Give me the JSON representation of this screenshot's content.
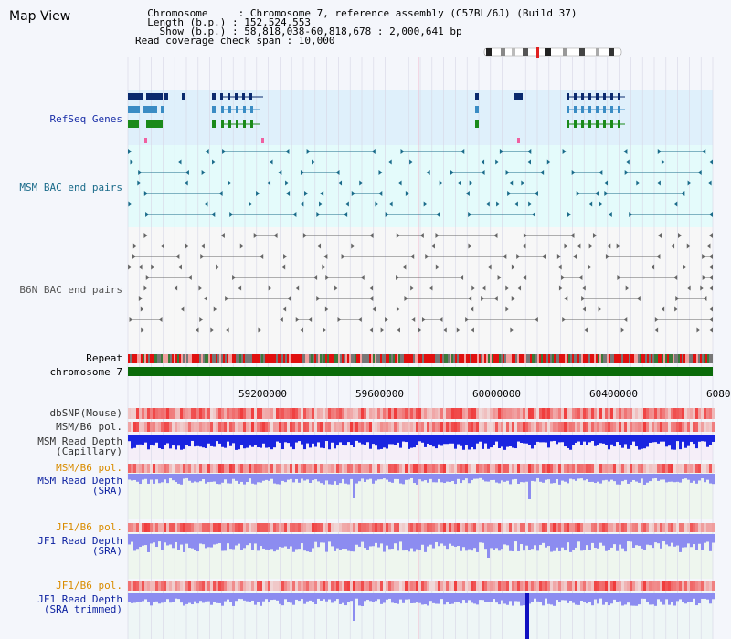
{
  "header": {
    "title": "Map View",
    "info_lines": [
      "  Chromosome     : Chromosome 7, reference assembly (C57BL/6J) (Build 37)",
      "  Length (b.p.) : 152,524,553",
      "    Show (b.p.) : 58,818,038-60,818,678 : 2,000,641 bp",
      "Read coverage check span : 10,000"
    ]
  },
  "tracks": {
    "refseq": {
      "label": "RefSeq Genes",
      "color": "#1a2fa8"
    },
    "msm_bac": {
      "label": "MSM BAC end pairs",
      "color": "#1a6b8a"
    },
    "b6n_bac": {
      "label": "B6N BAC end pairs",
      "color": "#555555"
    },
    "repeat": {
      "label": "Repeat"
    },
    "chromosome": {
      "label": "chromosome 7"
    },
    "dbsnp": {
      "label": "dbSNP(Mouse)"
    },
    "msm_b6_pol": {
      "label": "MSM/B6 pol."
    },
    "msm_depth_cap": {
      "label": "MSM Read Depth\n(Capillary)"
    },
    "msm_b6_pol_2": {
      "label": "MSM/B6 pol.",
      "color": "#d98c00"
    },
    "msm_depth_sra": {
      "label": "MSM Read Depth\n(SRA)",
      "color": "#0a1fa0"
    },
    "jf1_b6_pol": {
      "label": "JF1/B6 pol.",
      "color": "#d98c00"
    },
    "jf1_depth_sra": {
      "label": "JF1 Read Depth\n(SRA)",
      "color": "#0a1fa0"
    },
    "jf1_b6_pol_2": {
      "label": "JF1/B6 pol.",
      "color": "#d98c00"
    },
    "jf1_depth_trim": {
      "label": "JF1 Read Depth\n(SRA trimmed)",
      "color": "#0a1fa0"
    }
  },
  "axis": {
    "ticks": [
      "59200000",
      "59600000",
      "60000000",
      "60400000",
      "6080"
    ]
  },
  "colors": {
    "gene_dark": "#0a2a6e",
    "gene_mid": "#3a8cc4",
    "gene_green": "#1a8a1a",
    "chromosome_bar": "#0a6b0a",
    "depth_blue": "#1a24e0",
    "depth_light": "#8c8cf0",
    "snp_red": "#e02020"
  }
}
